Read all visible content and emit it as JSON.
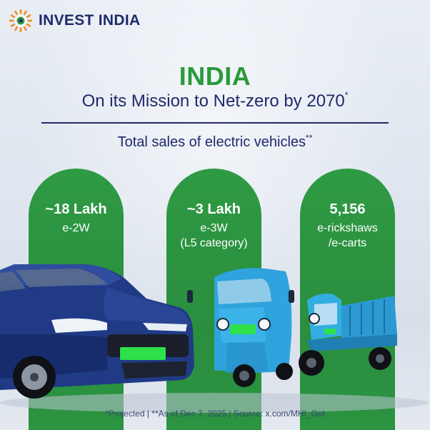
{
  "brand": {
    "name": "INVEST INDIA",
    "colors": {
      "navy": "#1f2a6b",
      "green": "#2a9a3a",
      "orange": "#f28c28"
    }
  },
  "headline": {
    "title": "INDIA",
    "subtitle": "On its Mission to Net-zero by 2070",
    "subtitle_mark": "*"
  },
  "section": {
    "label": "Total sales of electric vehicles",
    "mark": "**"
  },
  "stats": [
    {
      "value": "~18 Lakh",
      "line1": "e-2W",
      "line2": ""
    },
    {
      "value": "~3 Lakh",
      "line1": "e-3W",
      "line2": "(L5 category)"
    },
    {
      "value": "5,156",
      "line1": "e-rickshaws",
      "line2": "/e-carts"
    }
  ],
  "footer": "*Projected | **As of Dec 7, 2025 | Source: x.com/MHI_GoI",
  "icons": [
    "invest-india-logo-icon",
    "suv-car-image",
    "auto-rickshaw-image",
    "e-cart-image"
  ]
}
